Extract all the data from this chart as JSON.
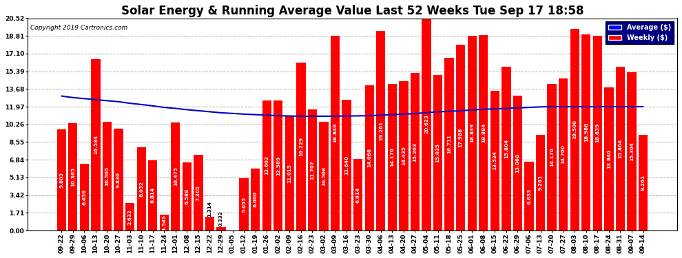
{
  "title": "Solar Energy & Running Average Value Last 52 Weeks Tue Sep 17 18:58",
  "copyright": "Copyright 2019 Cartronics.com",
  "categories": [
    "09-22",
    "09-29",
    "10-06",
    "10-13",
    "10-20",
    "10-27",
    "11-03",
    "11-10",
    "11-17",
    "11-24",
    "12-01",
    "12-08",
    "12-15",
    "12-22",
    "12-29",
    "01-05",
    "01-12",
    "01-19",
    "01-26",
    "02-02",
    "02-09",
    "02-16",
    "02-23",
    "03-02",
    "03-09",
    "03-16",
    "03-23",
    "03-30",
    "04-06",
    "04-13",
    "04-20",
    "04-27",
    "05-04",
    "05-11",
    "05-18",
    "05-25",
    "06-01",
    "06-08",
    "06-15",
    "06-22",
    "06-29",
    "07-06",
    "07-13",
    "07-20",
    "07-27",
    "08-03",
    "08-10",
    "08-17",
    "08-24",
    "08-31",
    "09-07",
    "09-14"
  ],
  "weekly_values": [
    9.803,
    10.365,
    6.456,
    16.584,
    10.505,
    9.83,
    2.632,
    8.032,
    6.814,
    1.545,
    10.475,
    6.588,
    7.305,
    1.314,
    0.332,
    0.0,
    5.055,
    6.0,
    12.602,
    12.569,
    11.015,
    16.229,
    11.707,
    10.508,
    18.84,
    12.64,
    6.914,
    14.068,
    19.261,
    14.17,
    14.435,
    15.203,
    20.623,
    15.035,
    16.711,
    17.988,
    18.839,
    18.884,
    13.534,
    15.804,
    13.068,
    6.633,
    9.261,
    14.17,
    14.7,
    19.5,
    18.988,
    18.839,
    13.84,
    15.804,
    15.304,
    9.261
  ],
  "avg_values": [
    13.0,
    12.85,
    12.75,
    12.65,
    12.55,
    12.45,
    12.3,
    12.18,
    12.05,
    11.9,
    11.8,
    11.68,
    11.58,
    11.48,
    11.38,
    11.32,
    11.25,
    11.2,
    11.15,
    11.1,
    11.07,
    11.05,
    11.05,
    11.05,
    11.05,
    11.07,
    11.08,
    11.1,
    11.15,
    11.2,
    11.25,
    11.3,
    11.4,
    11.47,
    11.52,
    11.58,
    11.65,
    11.72,
    11.76,
    11.8,
    11.85,
    11.9,
    11.95,
    11.97,
    11.97,
    11.97,
    11.97,
    11.97,
    11.97,
    11.97,
    11.97,
    11.97
  ],
  "bar_color": "#ff0000",
  "avg_line_color": "#0000cc",
  "background_color": "#ffffff",
  "grid_color": "#aaaaaa",
  "ylim_max": 20.52,
  "yticks": [
    0.0,
    1.71,
    3.42,
    5.13,
    6.84,
    8.55,
    10.26,
    11.97,
    13.68,
    15.39,
    17.1,
    18.81,
    20.52
  ],
  "legend_avg_label": "Average ($)",
  "legend_weekly_label": "Weekly ($)",
  "legend_avg_color": "#0000ff",
  "legend_weekly_color": "#ff0000",
  "title_fontsize": 12,
  "tick_fontsize": 6.5,
  "bar_label_fontsize": 5.2
}
